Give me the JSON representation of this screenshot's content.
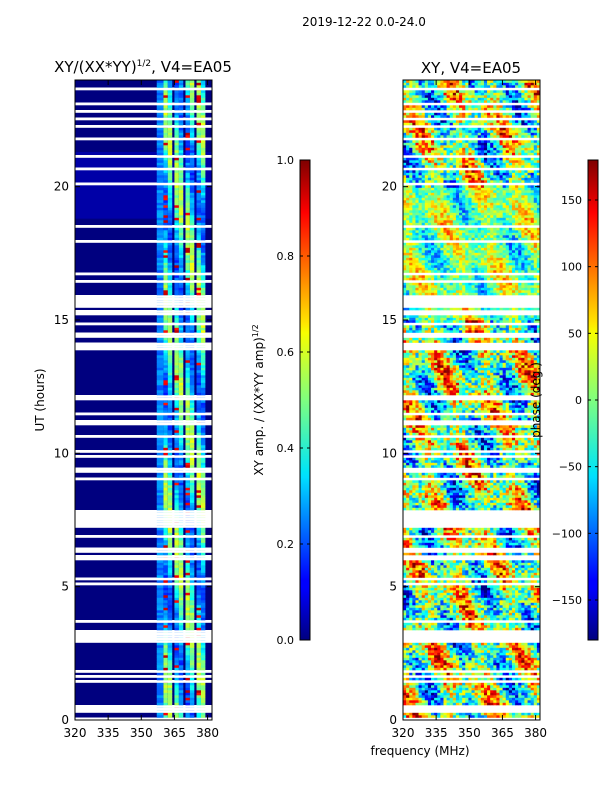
{
  "figure_title": "2019-12-22 0.0-24.0",
  "chart_data": [
    {
      "type": "heatmap",
      "title": "XY/(XX*YY)",
      "title_sup": "1/2",
      "title_suffix": ", V4=EA05",
      "xlabel": "",
      "ylabel": "UT (hours)",
      "xlim": [
        320,
        382
      ],
      "ylim": [
        0,
        24
      ],
      "xticks": [
        "320",
        "335",
        "350",
        "365",
        "380"
      ],
      "yticks": [
        "0",
        "5",
        "10",
        "15",
        "20"
      ],
      "colorbar": {
        "label": "XY amp. / (XX*YY amp)",
        "label_sup": "1/2",
        "range": [
          0.0,
          1.0
        ],
        "ticks": [
          "0.0",
          "0.2",
          "0.4",
          "0.6",
          "0.8",
          "1.0"
        ],
        "colormap": "jet"
      },
      "bright_channels_mhz": [
        361,
        363,
        366,
        368,
        371,
        373,
        376,
        378
      ],
      "flagged_ut_bands_hours": [
        [
          2.9,
          3.3
        ],
        [
          7.2,
          7.9
        ],
        [
          13.9,
          14.2
        ],
        [
          15.6,
          15.9
        ]
      ]
    },
    {
      "type": "heatmap",
      "title": "XY, V4=EA05",
      "xlabel": "frequency (MHz)",
      "ylabel": "",
      "xlim": [
        320,
        382
      ],
      "ylim": [
        0,
        24
      ],
      "xticks": [
        "320",
        "335",
        "350",
        "365",
        "380"
      ],
      "yticks": [
        "0",
        "5",
        "10",
        "15",
        "20"
      ],
      "colorbar": {
        "label": "phase (deg.)",
        "range": [
          -180,
          180
        ],
        "ticks": [
          "−150",
          "−100",
          "−50",
          "0",
          "50",
          "100",
          "150"
        ],
        "colormap": "jet"
      },
      "flagged_ut_bands_hours": [
        [
          2.9,
          3.3
        ],
        [
          7.2,
          7.9
        ],
        [
          13.9,
          14.2
        ],
        [
          15.6,
          15.9
        ]
      ]
    }
  ],
  "colors": {
    "jet_dark_blue": "#00007f",
    "jet_blue": "#0000ff",
    "jet_cyan": "#00ffff",
    "jet_green": "#7fff7f",
    "jet_yellow": "#ffff00",
    "jet_red": "#ff0000",
    "jet_dark_red": "#7f0000"
  }
}
